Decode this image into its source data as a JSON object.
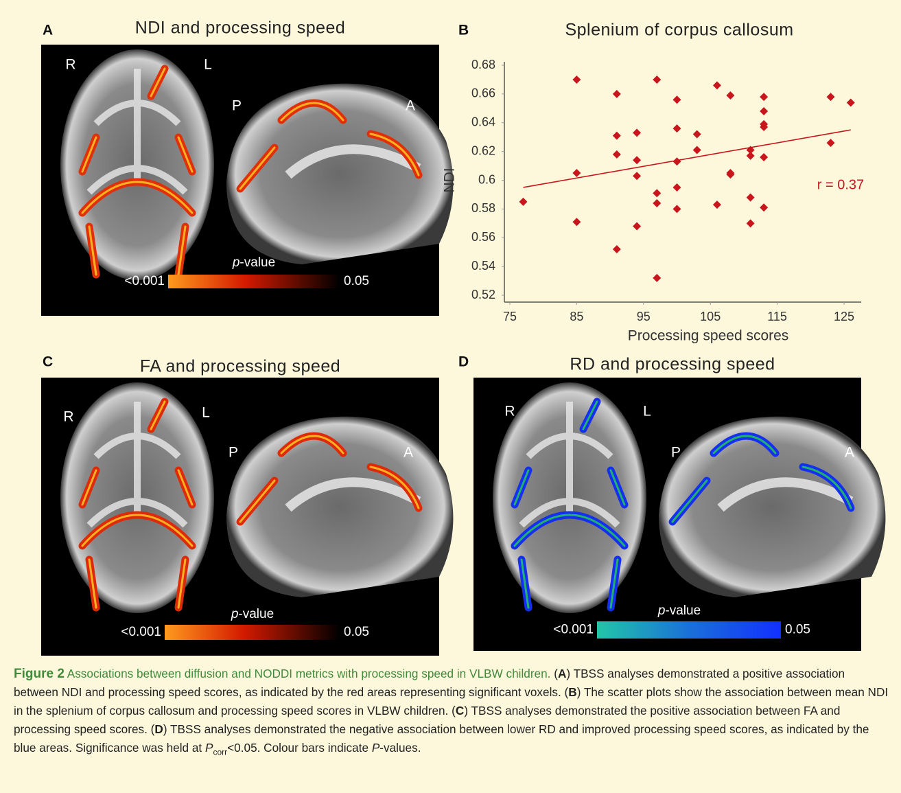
{
  "panels": [
    {
      "letter": "A",
      "title": "NDI and processing speed",
      "orient": [
        "R",
        "L",
        "P",
        "A"
      ],
      "colorbar": {
        "title_italic": "p",
        "title_rest": "-value",
        "low": "<0.001",
        "high": "0.05"
      }
    },
    {
      "letter": "C",
      "title": "FA and processing speed",
      "orient": [
        "R",
        "L",
        "P",
        "A"
      ],
      "colorbar": {
        "title_italic": "p",
        "title_rest": "-value",
        "low": "<0.001",
        "high": "0.05"
      }
    },
    {
      "letter": "D",
      "title": "RD and processing speed",
      "orient": [
        "R",
        "L",
        "P",
        "A"
      ],
      "colorbar": {
        "title_italic": "p",
        "title_rest": "-value",
        "low": "<0.001",
        "high": "0.05"
      }
    }
  ],
  "chart_data": {
    "type": "scatter",
    "letter": "B",
    "title": "Splenium of corpus callosum",
    "x_label": "Processing speed scores",
    "y_label": "NDI",
    "annotation": "r = 0.37",
    "color": "#c8161d",
    "x": [
      77,
      85,
      85,
      85,
      91,
      91,
      91,
      91,
      94,
      94,
      94,
      94,
      97,
      97,
      97,
      97,
      100,
      100,
      100,
      100,
      100,
      103,
      103,
      106,
      106,
      108,
      108,
      108,
      111,
      111,
      111,
      111,
      113,
      113,
      113,
      113,
      113,
      113,
      123,
      123,
      126
    ],
    "values": [
      0.585,
      0.67,
      0.605,
      0.571,
      0.66,
      0.631,
      0.618,
      0.552,
      0.633,
      0.614,
      0.603,
      0.568,
      0.67,
      0.591,
      0.584,
      0.532,
      0.656,
      0.636,
      0.613,
      0.595,
      0.58,
      0.632,
      0.621,
      0.666,
      0.583,
      0.659,
      0.605,
      0.604,
      0.621,
      0.617,
      0.588,
      0.57,
      0.658,
      0.648,
      0.639,
      0.637,
      0.616,
      0.581,
      0.658,
      0.626,
      0.654
    ],
    "trendline": {
      "x": [
        77,
        126
      ],
      "values": [
        0.595,
        0.635
      ]
    },
    "xlim": [
      75,
      127
    ],
    "ylim": [
      0.52,
      0.68
    ],
    "xticks": [
      75,
      85,
      95,
      105,
      115,
      125
    ],
    "yticks": [
      0.52,
      0.54,
      0.56,
      0.58,
      0.6,
      0.62,
      0.64,
      0.66,
      0.68
    ],
    "grid": false
  },
  "caption": {
    "label": "Figure 2",
    "title": "Associations between diffusion and NODDI metrics with processing speed in VLBW children.",
    "body": [
      "(",
      "A",
      ") TBSS analyses demonstrated a positive association between NDI and processing speed scores, as indicated by the red areas representing significant voxels. (",
      "B",
      ") The scatter plots show the association between mean NDI in the splenium of corpus callosum and processing speed scores in VLBW children. (",
      "C",
      ") TBSS analyses demonstrated the positive association between FA and processing speed scores. (",
      "D",
      ") TBSS analyses demonstrated the negative association between lower RD and improved processing speed scores, as indicated by the blue areas. Significance was held at ",
      "P",
      "corr",
      "<0.05. Colour bars indicate ",
      "P",
      "-values."
    ]
  }
}
